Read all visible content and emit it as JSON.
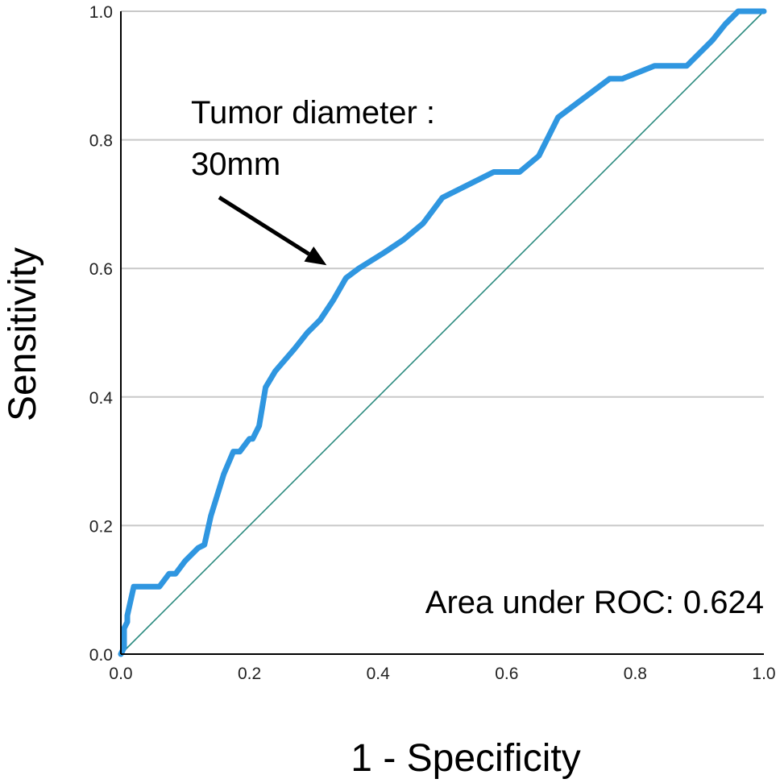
{
  "chart_data": {
    "type": "line",
    "title": "",
    "xlabel": "1 - Specificity",
    "ylabel": "Sensitivity",
    "xlim": [
      0.0,
      1.0
    ],
    "ylim": [
      0.0,
      1.0
    ],
    "x_ticks": [
      "0.0",
      "0.2",
      "0.4",
      "0.6",
      "0.8",
      "1.0"
    ],
    "y_ticks": [
      "0.0",
      "0.2",
      "0.4",
      "0.6",
      "0.8",
      "1.0"
    ],
    "grid": "horizontal",
    "colors": {
      "roc": "#2f96e0",
      "reference": "#2a8a7f",
      "grid": "#c8c8c8",
      "axis": "#000000"
    },
    "series": [
      {
        "x": [
          0.0,
          0.005,
          0.005,
          0.01,
          0.01,
          0.02,
          0.06,
          0.075,
          0.085,
          0.1,
          0.12,
          0.13,
          0.14,
          0.16,
          0.175,
          0.185,
          0.2,
          0.205,
          0.215,
          0.225,
          0.24,
          0.27,
          0.29,
          0.31,
          0.33,
          0.35,
          0.37,
          0.41,
          0.44,
          0.47,
          0.5,
          0.51,
          0.52,
          0.58,
          0.62,
          0.65,
          0.68,
          0.72,
          0.76,
          0.78,
          0.83,
          0.88,
          0.92,
          0.94,
          0.96,
          1.0
        ],
        "y": [
          0.0,
          0.01,
          0.04,
          0.05,
          0.06,
          0.105,
          0.105,
          0.125,
          0.125,
          0.145,
          0.165,
          0.17,
          0.215,
          0.28,
          0.315,
          0.315,
          0.335,
          0.335,
          0.355,
          0.415,
          0.44,
          0.475,
          0.5,
          0.52,
          0.55,
          0.585,
          0.6,
          0.625,
          0.645,
          0.67,
          0.71,
          0.715,
          0.72,
          0.75,
          0.75,
          0.775,
          0.835,
          0.865,
          0.895,
          0.895,
          0.915,
          0.915,
          0.955,
          0.98,
          1.0,
          1.0
        ]
      }
    ],
    "reference_line": {
      "x": [
        0.0,
        1.0
      ],
      "y": [
        0.0,
        1.0
      ]
    },
    "annotations": {
      "point_label_line1": "Tumor diameter :",
      "point_label_line2": "30mm",
      "point": {
        "x": 0.325,
        "y": 0.6
      },
      "auc_text": "Area under ROC: 0.624"
    }
  }
}
